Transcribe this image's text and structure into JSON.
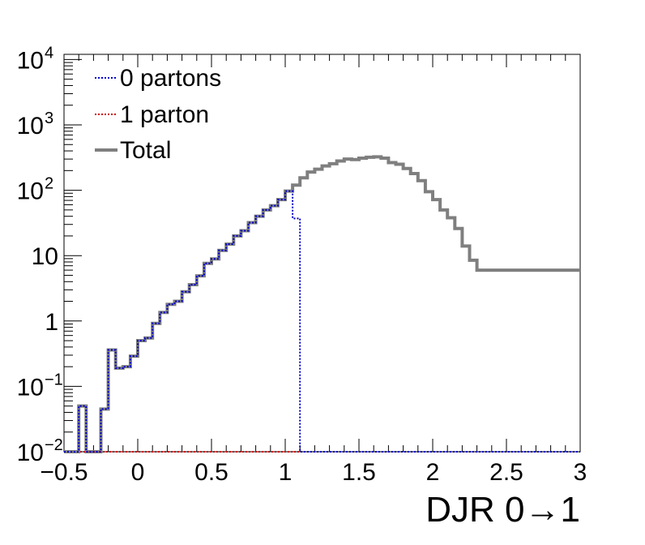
{
  "chart_data": {
    "type": "line",
    "title": "",
    "xlabel": "DJR 0→1",
    "ylabel": "",
    "xlim": [
      -0.5,
      3
    ],
    "ylim": [
      0.01,
      12000
    ],
    "yscale": "log",
    "grid": false,
    "legend_position": "top-left",
    "x_ticks": [
      {
        "value": -0.5,
        "label": "−0.5"
      },
      {
        "value": 0,
        "label": "0"
      },
      {
        "value": 0.5,
        "label": "0.5"
      },
      {
        "value": 1,
        "label": "1"
      },
      {
        "value": 1.5,
        "label": "1.5"
      },
      {
        "value": 2,
        "label": "2"
      },
      {
        "value": 2.5,
        "label": "2.5"
      },
      {
        "value": 3,
        "label": "3"
      }
    ],
    "y_ticks": [
      {
        "value": 0.01,
        "base": "10",
        "exp": "−2"
      },
      {
        "value": 0.1,
        "base": "10",
        "exp": "−1"
      },
      {
        "value": 1,
        "base": "1",
        "exp": ""
      },
      {
        "value": 10,
        "base": "10",
        "exp": ""
      },
      {
        "value": 100,
        "base": "10",
        "exp": "2"
      },
      {
        "value": 1000,
        "base": "10",
        "exp": "3"
      },
      {
        "value": 10000,
        "base": "10",
        "exp": "4"
      }
    ],
    "bin_width": 0.05,
    "series": [
      {
        "name": "0 partons",
        "color": "#0000cc",
        "style": "dotted",
        "x_start": -0.5,
        "values": [
          0.01,
          0.01,
          0.05,
          0.01,
          0.01,
          0.045,
          0.36,
          0.19,
          0.2,
          0.29,
          0.5,
          0.55,
          0.92,
          1.35,
          1.8,
          2.0,
          2.8,
          3.6,
          4.9,
          7.6,
          8.9,
          12.0,
          15.0,
          20.0,
          24.0,
          32.0,
          40.0,
          50.0,
          58.0,
          72.0,
          97.0,
          37.0,
          0.01,
          0.01,
          0.01,
          0.01,
          0.01,
          0.01,
          0.01,
          0.01,
          0.01,
          0.01,
          0.01,
          0.01,
          0.01,
          0.01,
          0.01,
          0.01,
          0.01,
          0.01,
          0.01,
          0.01,
          0.01,
          0.01,
          0.01,
          0.01,
          0.01,
          0.01,
          0.01,
          0.01,
          0.01,
          0.01,
          0.01,
          0.01,
          0.01,
          0.01,
          0.01,
          0.01,
          0.01,
          0.01
        ]
      },
      {
        "name": "1 parton",
        "color": "#cc0000",
        "style": "dotted",
        "x_start": -0.5,
        "values": [
          0.01,
          0.01,
          0.01,
          0.01,
          0.01,
          0.01,
          0.01,
          0.01,
          0.01,
          0.01,
          0.01,
          0.01,
          0.01,
          0.01,
          0.01,
          0.01,
          0.01,
          0.01,
          0.01,
          0.01,
          0.01,
          0.01,
          0.01,
          0.01,
          0.01,
          0.01,
          0.01,
          0.01,
          0.01,
          0.01,
          0.01,
          0.01,
          0.01,
          0.01,
          0.01,
          0.01,
          0.01,
          0.01,
          0.01,
          0.01,
          0.01,
          0.01,
          0.01,
          0.01,
          0.01,
          0.01,
          0.01,
          0.01,
          0.01,
          0.01,
          0.01,
          0.01,
          0.01,
          0.01,
          0.01,
          0.01,
          0.01,
          0.01,
          0.01,
          0.01,
          0.01,
          0.01,
          0.01,
          0.01,
          0.01,
          0.01,
          0.01,
          0.01,
          0.01,
          0.01
        ]
      },
      {
        "name": "Total",
        "color": "#7f7f7f",
        "style": "solid",
        "x_start": -0.5,
        "values": [
          0.01,
          0.01,
          0.05,
          0.01,
          0.01,
          0.045,
          0.36,
          0.19,
          0.2,
          0.29,
          0.5,
          0.55,
          0.92,
          1.35,
          1.8,
          2.0,
          2.8,
          3.6,
          4.9,
          7.6,
          8.9,
          12.0,
          15.0,
          20.0,
          24.0,
          32.0,
          40.0,
          50.0,
          58.0,
          72.0,
          97.0,
          120.0,
          155.0,
          190.0,
          210.0,
          235.0,
          255.0,
          280.0,
          300.0,
          295.0,
          310.0,
          320.0,
          325.0,
          310.0,
          265.0,
          250.0,
          215.0,
          180.0,
          140.0,
          95.0,
          72.0,
          50.0,
          38.0,
          26.0,
          14.0,
          8.5,
          6.0,
          6.0,
          6.0,
          6.0,
          6.0,
          6.0,
          6.0,
          6.0,
          6.0,
          6.0,
          6.0,
          6.0,
          6.0,
          6.0
        ]
      }
    ]
  }
}
